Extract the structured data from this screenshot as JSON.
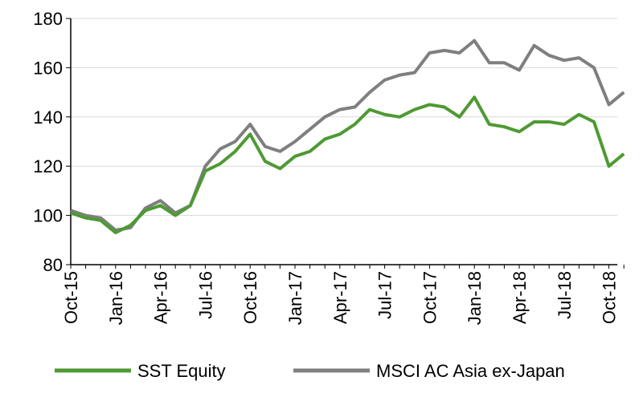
{
  "chart_data": {
    "type": "line",
    "categories": [
      "Oct-15",
      null,
      null,
      "Jan-16",
      null,
      null,
      "Apr-16",
      null,
      null,
      "Jul-16",
      null,
      null,
      "Oct-16",
      null,
      null,
      "Jan-17",
      null,
      null,
      "Apr-17",
      null,
      null,
      "Jul-17",
      null,
      null,
      "Oct-17",
      null,
      null,
      "Jan-18",
      null,
      null,
      "Apr-18",
      null,
      null,
      "Jul-18",
      null,
      null,
      "Oct-18",
      null
    ],
    "series": [
      {
        "name": "SST Equity",
        "color": "#4e9a33",
        "values": [
          101,
          99,
          98,
          93,
          96,
          102,
          104,
          100,
          104,
          118,
          121,
          126,
          133,
          122,
          119,
          124,
          126,
          131,
          133,
          137,
          143,
          141,
          140,
          143,
          145,
          144,
          140,
          148,
          137,
          136,
          134,
          138,
          138,
          137,
          141,
          138,
          120,
          125
        ]
      },
      {
        "name": "MSCI AC Asia ex-Japan",
        "color": "#7f7f7f",
        "values": [
          102,
          100,
          99,
          94,
          95,
          103,
          106,
          101,
          104,
          120,
          127,
          130,
          137,
          128,
          126,
          130,
          135,
          140,
          143,
          144,
          150,
          155,
          157,
          158,
          166,
          167,
          166,
          171,
          162,
          162,
          159,
          169,
          165,
          163,
          164,
          160,
          145,
          150
        ]
      }
    ],
    "ylim": [
      80,
      180
    ],
    "yticks": [
      80,
      100,
      120,
      140,
      160,
      180
    ],
    "grid": true,
    "legend": "bottom"
  }
}
